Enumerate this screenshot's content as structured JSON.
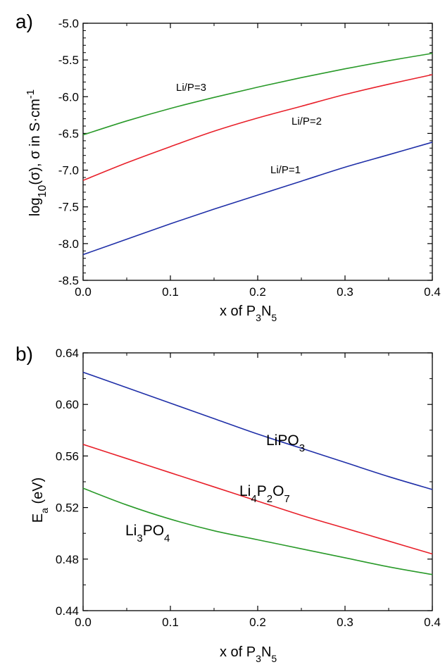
{
  "chart_data": [
    {
      "type": "line",
      "panel_label": "a)",
      "xlabel": "x of P3N5",
      "xlabel_parts": {
        "pre": "x of P",
        "s1": "3",
        "mid": "N",
        "s2": "5"
      },
      "ylabel": "log10(σ), σ in S·cm-1",
      "ylabel_parts": {
        "pre": "log",
        "sub": "10",
        "mid": "(σ), σ in S·cm",
        "sup": "-1"
      },
      "xlim": [
        0.0,
        0.4
      ],
      "ylim": [
        -8.5,
        -5.0
      ],
      "x_ticks": [
        "0.0",
        "0.1",
        "0.2",
        "0.3",
        "0.4"
      ],
      "y_ticks": [
        "-8.5",
        "-8.0",
        "-7.5",
        "-7.0",
        "-6.5",
        "-6.0",
        "-5.5",
        "-5.0"
      ],
      "x": [
        0.0,
        0.05,
        0.1,
        0.15,
        0.2,
        0.25,
        0.3,
        0.35,
        0.4
      ],
      "series": [
        {
          "label": "Li/P=3",
          "color": "#2a9a2a",
          "values": [
            -6.52,
            -6.33,
            -6.16,
            -6.01,
            -5.87,
            -5.74,
            -5.62,
            -5.51,
            -5.41
          ]
        },
        {
          "label": "Li/P=2",
          "color": "#e8202a",
          "values": [
            -7.14,
            -6.9,
            -6.68,
            -6.47,
            -6.29,
            -6.13,
            -5.97,
            -5.83,
            -5.7
          ]
        },
        {
          "label": "Li/P=1",
          "color": "#1f2fa8",
          "values": [
            -8.15,
            -7.94,
            -7.73,
            -7.53,
            -7.34,
            -7.15,
            -6.96,
            -6.79,
            -6.62
          ]
        }
      ]
    },
    {
      "type": "line",
      "panel_label": "b)",
      "xlabel": "x of P3N5",
      "xlabel_parts": {
        "pre": "x of P",
        "s1": "3",
        "mid": "N",
        "s2": "5"
      },
      "ylabel": "Ea (eV)",
      "ylabel_parts": {
        "pre": "E",
        "sub": "a",
        "post": " (eV)"
      },
      "xlim": [
        0.0,
        0.4
      ],
      "ylim": [
        0.44,
        0.64
      ],
      "x_ticks": [
        "0.0",
        "0.1",
        "0.2",
        "0.3",
        "0.4"
      ],
      "y_ticks": [
        "0.44",
        "0.48",
        "0.52",
        "0.56",
        "0.60",
        "0.64"
      ],
      "x": [
        0.0,
        0.05,
        0.1,
        0.15,
        0.2,
        0.25,
        0.3,
        0.35,
        0.4
      ],
      "series": [
        {
          "label": "LiPO3",
          "label_parts": [
            [
              "LiPO",
              ""
            ],
            [
              "3",
              "sub"
            ]
          ],
          "color": "#1f2fa8",
          "values": [
            0.625,
            0.613,
            0.601,
            0.589,
            0.577,
            0.566,
            0.555,
            0.544,
            0.534
          ]
        },
        {
          "label": "Li4P2O7",
          "label_parts": [
            [
              "Li",
              ""
            ],
            [
              "4",
              "sub"
            ],
            [
              "P",
              ""
            ],
            [
              "2",
              "sub"
            ],
            [
              "O",
              ""
            ],
            [
              "7",
              "sub"
            ]
          ],
          "color": "#e8202a",
          "values": [
            0.569,
            0.558,
            0.547,
            0.536,
            0.525,
            0.514,
            0.504,
            0.494,
            0.484
          ]
        },
        {
          "label": "Li3PO4",
          "label_parts": [
            [
              "Li",
              ""
            ],
            [
              "3",
              "sub"
            ],
            [
              "PO",
              ""
            ],
            [
              "4",
              "sub"
            ]
          ],
          "color": "#2a9a2a",
          "values": [
            0.535,
            0.522,
            0.511,
            0.502,
            0.495,
            0.488,
            0.481,
            0.474,
            0.468
          ]
        }
      ]
    }
  ]
}
